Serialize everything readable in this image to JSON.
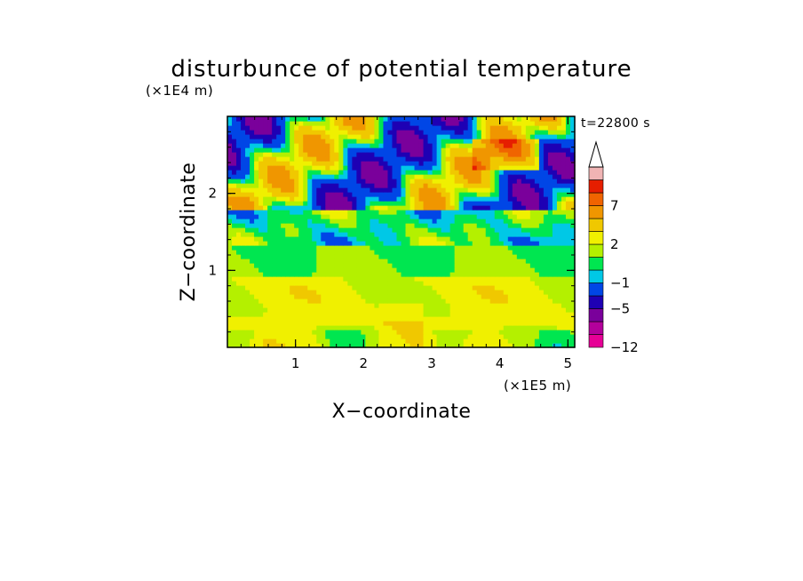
{
  "chart_data": {
    "type": "heatmap",
    "title": "disturbunce of potential temperature",
    "time_label": "t=22800 s",
    "xlabel": "X−coordinate",
    "ylabel": "Z−coordinate",
    "x_unit": "(×1E5 m)",
    "y_unit": "(×1E4 m)",
    "xlim": [
      0,
      5.1
    ],
    "ylim": [
      0,
      3.0
    ],
    "x_ticks": [
      1,
      2,
      3,
      4,
      5
    ],
    "x_tick_labels": [
      "1",
      "2",
      "3",
      "4",
      "5"
    ],
    "y_ticks": [
      1,
      2
    ],
    "y_tick_labels": [
      "1",
      "2"
    ],
    "colorbar": {
      "levels": [
        -12,
        -9,
        -7,
        -5,
        -3,
        -1,
        0,
        1,
        2,
        3,
        5,
        7,
        9,
        11
      ],
      "colors": [
        "#e60096",
        "#b3009b",
        "#7a009b",
        "#1e00b4",
        "#0046e6",
        "#00c8e6",
        "#00e650",
        "#b4f000",
        "#f0f000",
        "#f0c800",
        "#f09600",
        "#f06400",
        "#e61e00",
        "#f0b4b4"
      ],
      "tick_values": [
        -12,
        -5,
        -1,
        2,
        7
      ],
      "tick_labels": [
        "−12",
        "−5",
        "−1",
        "2",
        "7"
      ],
      "extend": "max",
      "extend_color": "#ffffff"
    },
    "grid": false
  }
}
